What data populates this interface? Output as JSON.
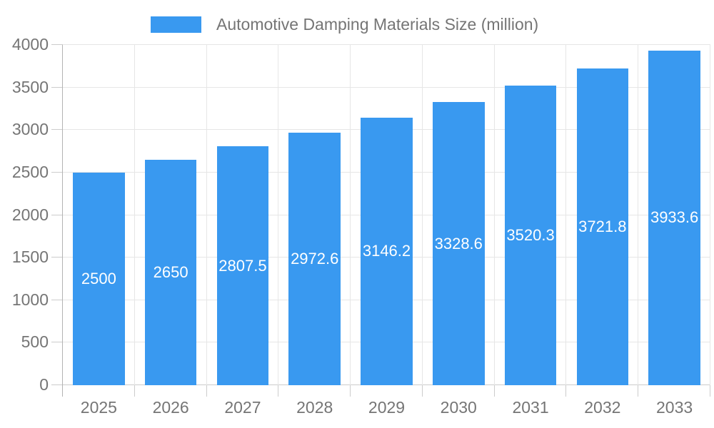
{
  "colors": {
    "bar": "#3999f0",
    "background": "#ffffff",
    "axis_text": "#757575",
    "title_text": "#757575",
    "bar_label_text": "#ffffff",
    "grid_line": "#e6e6e6",
    "zero_line": "#cccccc",
    "tick_line": "#cccccc",
    "axis_line": "#b3b3b3"
  },
  "legend": {
    "position": "top",
    "swatch_color": "#3999f0"
  },
  "chart_data": {
    "type": "bar",
    "title": "Automotive Damping Materials Size (million)",
    "categories": [
      "2025",
      "2026",
      "2027",
      "2028",
      "2029",
      "2030",
      "2031",
      "2032",
      "2033"
    ],
    "series": [
      {
        "name": "Automotive Damping Materials Size (million)",
        "values": [
          2500,
          2650,
          2807.5,
          2972.6,
          3146.2,
          3328.6,
          3520.3,
          3721.8,
          3933.6
        ]
      }
    ],
    "bar_value_labels": [
      "2500",
      "2650",
      "2807.5",
      "2972.6",
      "3146.2",
      "3328.6",
      "3520.3",
      "3721.8",
      "3933.6"
    ],
    "xlabel": "",
    "ylabel": "",
    "ylim": [
      0,
      4000
    ],
    "y_ticks": [
      0,
      500,
      1000,
      1500,
      2000,
      2500,
      3000,
      3500,
      4000
    ],
    "grid": true,
    "legend_position": "top"
  }
}
